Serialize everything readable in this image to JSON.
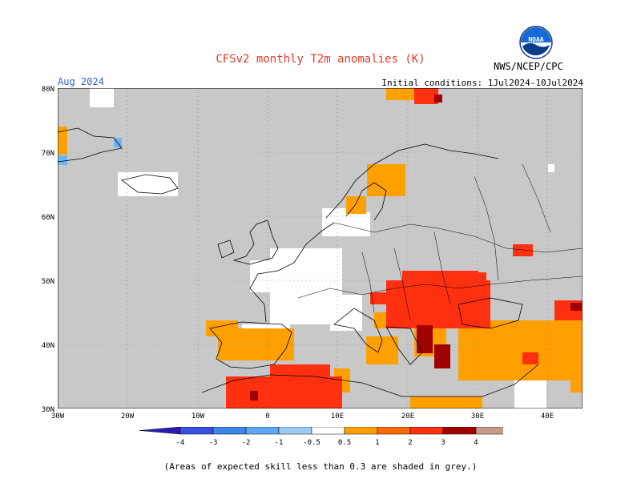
{
  "title": "CFSv2 monthly T2m anomalies (K)",
  "target_month": "Aug 2024",
  "initial_conditions": "Initial conditions: 1Jul2024-10Jul2024",
  "org": "NWS/NCEP/CPC",
  "logo_text": "NOAA",
  "footnote": "(Areas of expected skill less than 0.3 are shaded in grey.)",
  "colors": {
    "ocean_grey": "#c8c8c8",
    "white_band": "#ffffff",
    "lt_warm": "#ffa000",
    "warm": "#ff3010",
    "hot": "#dd1c00",
    "very_hot": "#a10000",
    "cool": "#6bb5f5"
  },
  "map": {
    "lon_range": [
      -30,
      45
    ],
    "lat_range": [
      30,
      80
    ],
    "lat_labels": [
      "30N",
      "40N",
      "50N",
      "60N",
      "70N",
      "80N"
    ],
    "lon_labels": [
      "30W",
      "20W",
      "10W",
      "0",
      "10E",
      "20E",
      "30E",
      "40E"
    ]
  },
  "colorbar": {
    "labels": [
      "-4",
      "-3",
      "-2",
      "-1",
      "-0.5",
      "0.5",
      "1",
      "2",
      "3",
      "4"
    ],
    "colors": [
      "#2a1cb5",
      "#3a4ee0",
      "#3d86e8",
      "#5ea8f2",
      "#9ccbf5",
      "#ffffff",
      "#ffa000",
      "#ff6a00",
      "#ff3010",
      "#a10000",
      "#c79a8a",
      "#7e4a3a"
    ]
  },
  "regions": [
    {
      "name": "iberia",
      "value": "0.5-1",
      "lon": [
        -9,
        3
      ],
      "lat": [
        36,
        43
      ]
    },
    {
      "name": "north-africa-west",
      "value": "1-2",
      "lon": [
        -10,
        10
      ],
      "lat": [
        30,
        35
      ]
    },
    {
      "name": "balkans-carpathians",
      "value": "1-2",
      "lon": [
        17,
        30
      ],
      "lat": [
        42,
        50
      ]
    },
    {
      "name": "turkey",
      "value": "0.5-1",
      "lon": [
        26,
        45
      ],
      "lat": [
        36,
        42
      ]
    },
    {
      "name": "scandinavia",
      "value": "0.5-1",
      "lon": [
        10,
        20
      ],
      "lat": [
        60,
        69
      ]
    },
    {
      "name": "france",
      "value": "-0.5-0.5",
      "lon": [
        -2,
        7
      ],
      "lat": [
        43,
        50
      ]
    }
  ]
}
